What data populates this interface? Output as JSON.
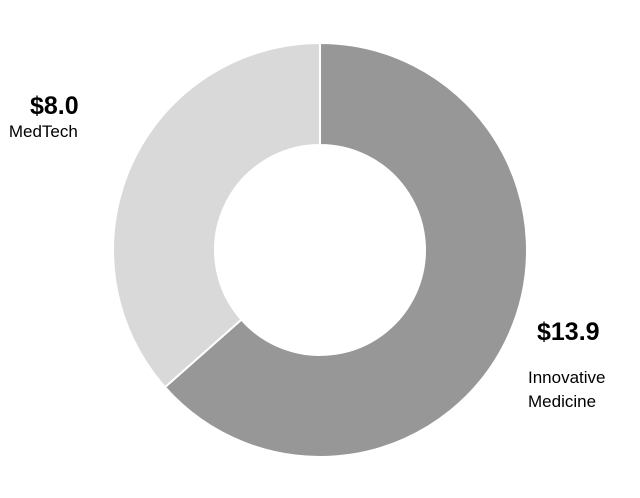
{
  "chart_data": {
    "type": "pie",
    "donut": true,
    "start": "top, clockwise",
    "slices": [
      {
        "label": "Innovative Medicine",
        "value": 13.9,
        "value_label": "$13.9",
        "color": "#979797"
      },
      {
        "label": "MedTech",
        "value": 8.0,
        "value_label": "$8.0",
        "color": "#d9d9d9"
      }
    ],
    "separator_color": "#ffffff"
  }
}
